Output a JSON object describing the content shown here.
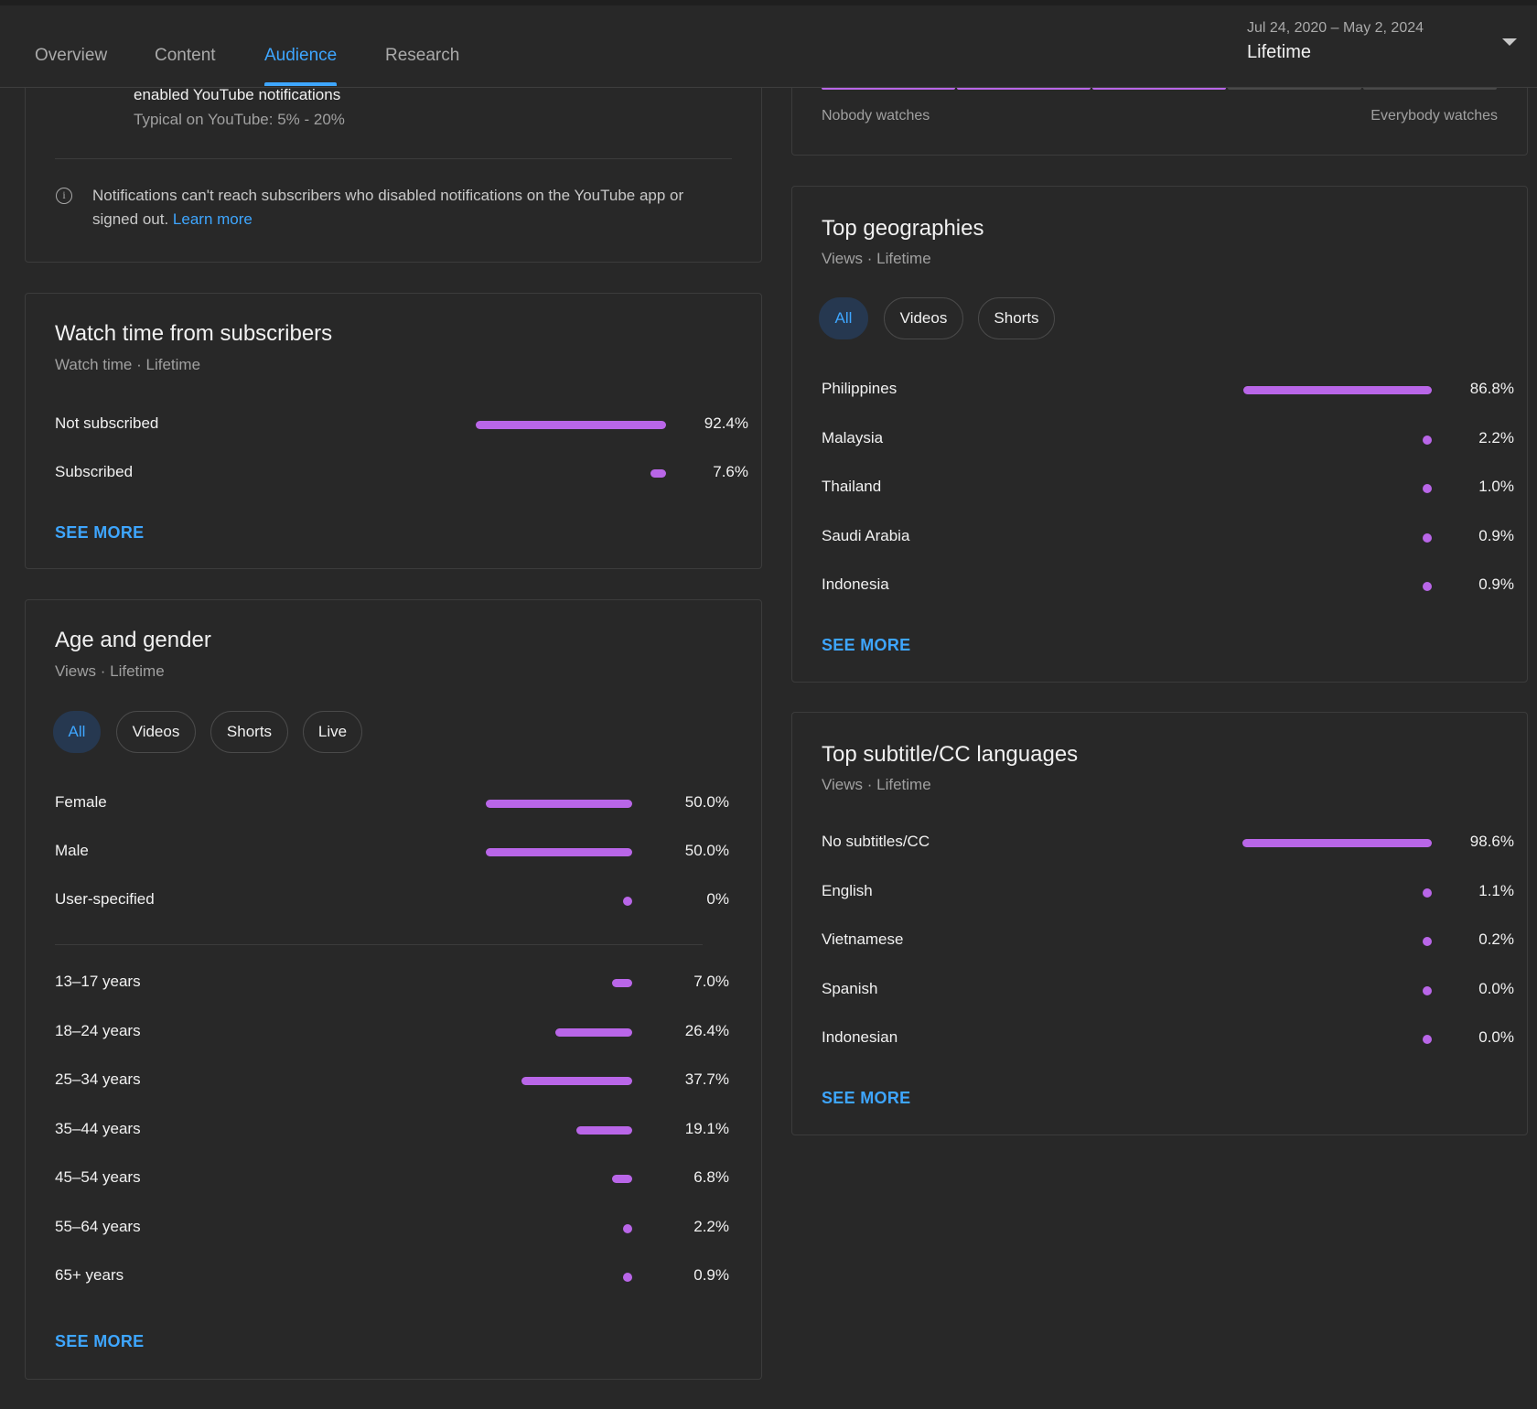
{
  "nav": {
    "tabs": [
      "Overview",
      "Content",
      "Audience",
      "Research"
    ],
    "active_tab": "Audience",
    "date_range": "Jul 24, 2020 – May 2, 2024",
    "period_label": "Lifetime"
  },
  "notifications": {
    "line1": "enabled YouTube notifications",
    "typical": "Typical on YouTube: 5% - 20%",
    "info_text": "Notifications can't reach subscribers who disabled notifications on the YouTube app or signed out.",
    "learn_more": "Learn more"
  },
  "watch_scale": {
    "left_label": "Nobody watches",
    "right_label": "Everybody watches",
    "filled_segments": 3,
    "total_segments": 5
  },
  "watch_time_subscribers": {
    "title": "Watch time from subscribers",
    "subtitle": "Watch time · Lifetime",
    "rows": [
      {
        "label": "Not subscribed",
        "value": "92.4%",
        "pct": 92.4
      },
      {
        "label": "Subscribed",
        "value": "7.6%",
        "pct": 7.6
      }
    ],
    "see_more": "SEE MORE"
  },
  "age_gender": {
    "title": "Age and gender",
    "subtitle": "Views · Lifetime",
    "chips": [
      "All",
      "Videos",
      "Shorts",
      "Live"
    ],
    "active_chip": "All",
    "gender_rows": [
      {
        "label": "Female",
        "value": "50.0%",
        "pct": 50.0
      },
      {
        "label": "Male",
        "value": "50.0%",
        "pct": 50.0
      },
      {
        "label": "User-specified",
        "value": "0%",
        "pct": 0
      }
    ],
    "age_rows": [
      {
        "label": "13–17 years",
        "value": "7.0%",
        "pct": 7.0
      },
      {
        "label": "18–24 years",
        "value": "26.4%",
        "pct": 26.4
      },
      {
        "label": "25–34 years",
        "value": "37.7%",
        "pct": 37.7
      },
      {
        "label": "35–44 years",
        "value": "19.1%",
        "pct": 19.1
      },
      {
        "label": "45–54 years",
        "value": "6.8%",
        "pct": 6.8
      },
      {
        "label": "55–64 years",
        "value": "2.2%",
        "pct": 2.2
      },
      {
        "label": "65+ years",
        "value": "0.9%",
        "pct": 0.9
      }
    ],
    "see_more": "SEE MORE"
  },
  "geographies": {
    "title": "Top geographies",
    "subtitle": "Views · Lifetime",
    "chips": [
      "All",
      "Videos",
      "Shorts"
    ],
    "active_chip": "All",
    "rows": [
      {
        "label": "Philippines",
        "value": "86.8%",
        "pct": 86.8
      },
      {
        "label": "Malaysia",
        "value": "2.2%",
        "pct": 2.2
      },
      {
        "label": "Thailand",
        "value": "1.0%",
        "pct": 1.0
      },
      {
        "label": "Saudi Arabia",
        "value": "0.9%",
        "pct": 0.9
      },
      {
        "label": "Indonesia",
        "value": "0.9%",
        "pct": 0.9
      }
    ],
    "see_more": "SEE MORE"
  },
  "subtitles": {
    "title": "Top subtitle/CC languages",
    "subtitle": "Views · Lifetime",
    "rows": [
      {
        "label": "No subtitles/CC",
        "value": "98.6%",
        "pct": 98.6
      },
      {
        "label": "English",
        "value": "1.1%",
        "pct": 1.1
      },
      {
        "label": "Vietnamese",
        "value": "0.2%",
        "pct": 0.2
      },
      {
        "label": "Spanish",
        "value": "0.0%",
        "pct": 0.0
      },
      {
        "label": "Indonesian",
        "value": "0.0%",
        "pct": 0.0
      }
    ],
    "see_more": "SEE MORE"
  },
  "colors": {
    "accent": "#3ea6ff",
    "bar": "#b966e8",
    "background": "#282828"
  }
}
